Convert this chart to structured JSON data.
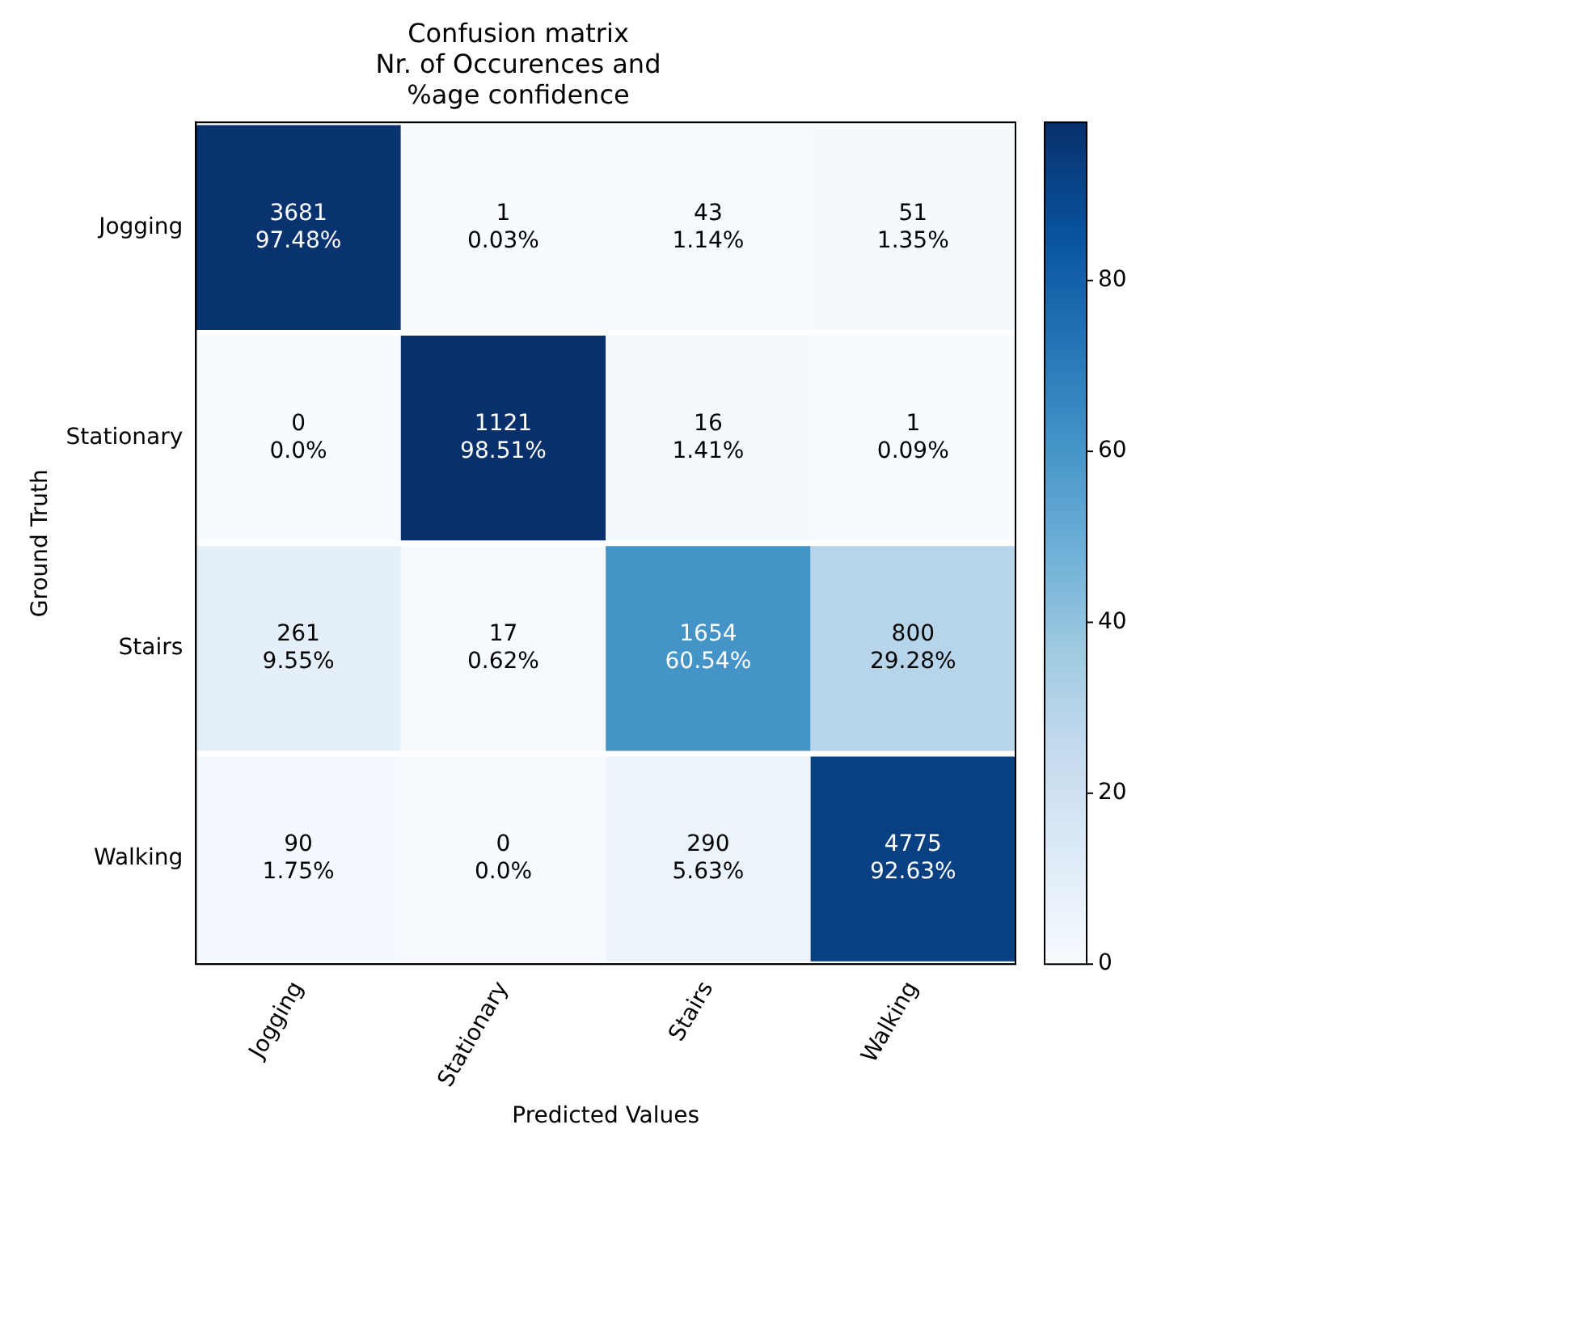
{
  "chart_data": {
    "type": "heatmap",
    "title": "Confusion matrix\nNr. of Occurences and\n%age confidence",
    "xlabel": "Predicted Values",
    "ylabel": "Ground Truth",
    "categories": [
      "Jogging",
      "Stationary",
      "Stairs",
      "Walking"
    ],
    "y_categories": [
      "Jogging",
      "Stationary",
      "Stairs",
      "Walking"
    ],
    "cells": [
      [
        97.48,
        0.03,
        1.14,
        1.35
      ],
      [
        0.0,
        98.51,
        1.41,
        0.09
      ],
      [
        9.55,
        0.62,
        60.54,
        29.28
      ],
      [
        1.75,
        0.0,
        5.63,
        92.63
      ]
    ],
    "cell_labels": [
      [
        "3681\n97.48%",
        "1\n0.03%",
        "43\n1.14%",
        "51\n1.35%"
      ],
      [
        "0\n0.0%",
        "1121\n98.51%",
        "16\n1.41%",
        "1\n0.09%"
      ],
      [
        "261\n9.55%",
        "17\n0.62%",
        "1654\n60.54%",
        "800\n29.28%"
      ],
      [
        "90\n1.75%",
        "0\n0.0%",
        "290\n5.63%",
        "4775\n92.63%"
      ]
    ],
    "clim": [
      0,
      98.51
    ],
    "cticks": [
      0,
      20,
      40,
      60,
      80
    ],
    "grid": false
  }
}
